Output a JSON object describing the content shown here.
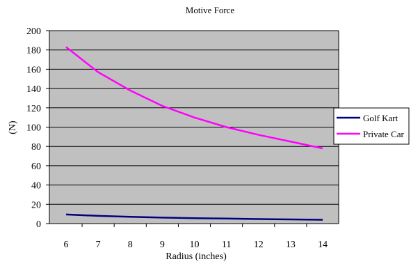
{
  "colors": {
    "plot_background": "#c0c0c0",
    "gridline": "#000000",
    "axis": "#000000",
    "golf_kart": "#000080",
    "private_car": "#ff00ff"
  },
  "chart_data": {
    "type": "line",
    "title": "Motive Force",
    "xlabel": "Radius (inches)",
    "ylabel": "(N)",
    "x": [
      6,
      7,
      8,
      9,
      10,
      11,
      12,
      13,
      14
    ],
    "xlim": [
      6,
      14
    ],
    "ylim": [
      0,
      200
    ],
    "y_ticks": [
      0,
      20,
      40,
      60,
      80,
      100,
      120,
      140,
      160,
      180,
      200
    ],
    "grid": true,
    "legend_position": "right",
    "series": [
      {
        "name": "Golf Kart",
        "color": "#000080",
        "values": [
          9.5,
          8.0,
          7.0,
          6.2,
          5.6,
          5.2,
          4.7,
          4.3,
          4.0
        ]
      },
      {
        "name": "Private Car",
        "color": "#ff00ff",
        "values": [
          183,
          157,
          138,
          122,
          110,
          100,
          92,
          85,
          78
        ]
      }
    ]
  }
}
